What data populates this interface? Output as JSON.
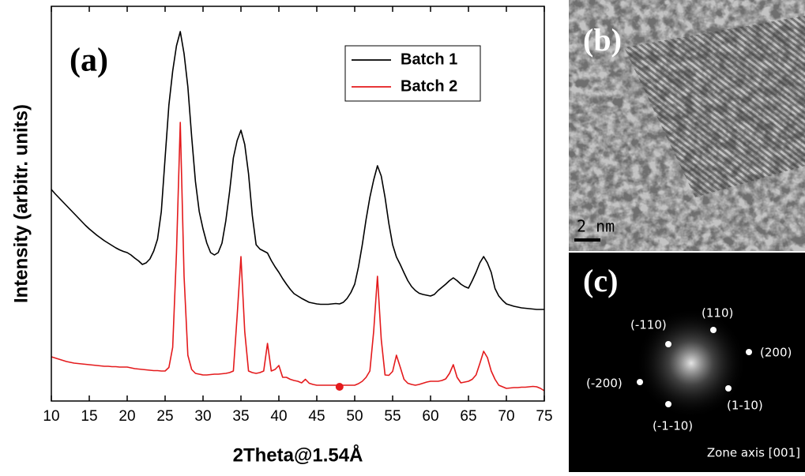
{
  "chart_data": {
    "type": "line",
    "label": "(a)",
    "xlabel": "2Theta@1.54Å",
    "ylabel": "Intensity (arbitr. units)",
    "x": [
      10,
      10.5,
      11,
      11.5,
      12,
      12.5,
      13,
      13.5,
      14,
      14.5,
      15,
      15.5,
      16,
      16.5,
      17,
      17.5,
      18,
      18.5,
      19,
      19.5,
      20,
      20.5,
      21,
      21.5,
      22,
      22.5,
      23,
      23.5,
      24,
      24.5,
      25,
      25.5,
      26,
      26.5,
      27,
      27.5,
      28,
      28.5,
      29,
      29.5,
      30,
      30.5,
      31,
      31.5,
      32,
      32.5,
      33,
      33.5,
      34,
      34.5,
      35,
      35.5,
      36,
      36.5,
      37,
      37.5,
      38,
      38.5,
      39,
      39.5,
      40,
      40.5,
      41,
      41.5,
      42,
      42.5,
      43,
      43.5,
      44,
      44.5,
      45,
      45.5,
      46,
      46.5,
      47,
      47.5,
      48,
      48.5,
      49,
      49.5,
      50,
      50.5,
      51,
      51.5,
      52,
      52.5,
      53,
      53.5,
      54,
      54.5,
      55,
      55.5,
      56,
      56.5,
      57,
      57.5,
      58,
      58.5,
      59,
      59.5,
      60,
      60.5,
      61,
      61.5,
      62,
      62.5,
      63,
      63.5,
      64,
      64.5,
      65,
      65.5,
      66,
      66.5,
      67,
      67.5,
      68,
      68.5,
      69,
      69.5,
      70,
      70.5,
      71,
      71.5,
      72,
      72.5,
      73,
      73.5,
      74,
      74.5,
      75
    ],
    "series": [
      {
        "name": "Batch 1",
        "color": "#000000",
        "values": [
          53.6,
          52.5,
          51.5,
          50.5,
          49.5,
          48.5,
          47.5,
          46.5,
          45.5,
          44.5,
          43.6,
          42.8,
          42,
          41.3,
          40.6,
          40,
          39.4,
          38.8,
          38.3,
          37.9,
          37.6,
          37,
          36.2,
          35.5,
          34.6,
          35,
          36,
          38,
          41,
          48,
          61.6,
          75,
          83.6,
          90,
          93.6,
          88,
          79.6,
          67,
          55.6,
          48,
          43.6,
          40,
          37.6,
          37,
          37.6,
          40,
          45.6,
          53,
          61.6,
          66,
          68.6,
          65,
          57.6,
          47,
          39.6,
          38.5,
          38,
          37.5,
          35.6,
          34,
          32.6,
          31,
          29.6,
          28.3,
          27.2,
          26.6,
          26,
          25.5,
          25,
          24.8,
          24.6,
          24.5,
          24.5,
          24.5,
          24.6,
          24.7,
          24.6,
          25,
          26,
          27.5,
          29.6,
          34,
          39.6,
          46,
          51.6,
          56,
          59.6,
          57,
          51.6,
          45,
          39.6,
          36.5,
          34.6,
          32.5,
          30.5,
          29,
          28,
          27.3,
          27,
          26.8,
          26.6,
          27,
          28,
          28.8,
          29.6,
          30.5,
          31.2,
          30.5,
          29.6,
          29,
          28.6,
          30.5,
          32.6,
          35,
          36.6,
          35,
          32.6,
          28.5,
          26.6,
          25.5,
          24.6,
          24.3,
          24,
          23.8,
          23.6,
          23.5,
          23.4,
          23.3,
          23.2,
          23.2,
          23.2
        ]
      },
      {
        "name": "Batch 2",
        "color": "#e41a1c",
        "values": [
          11.2,
          10.9,
          10.6,
          10.3,
          10,
          9.8,
          9.6,
          9.5,
          9.4,
          9.3,
          9.2,
          9.1,
          9,
          8.9,
          8.8,
          8.8,
          8.7,
          8.7,
          8.6,
          8.6,
          8.6,
          8.4,
          8.2,
          8.1,
          8,
          7.9,
          7.8,
          7.7,
          7.7,
          7.6,
          7.6,
          8.5,
          13.6,
          37.6,
          70.6,
          31.6,
          11.6,
          8,
          7,
          6.8,
          6.6,
          6.6,
          6.7,
          6.8,
          6.8,
          6.9,
          7,
          7.2,
          7.6,
          21.6,
          36.6,
          17.6,
          7.6,
          7.2,
          7,
          7.2,
          7.6,
          14.6,
          7.6,
          8,
          9,
          6,
          6,
          5.5,
          5.2,
          5,
          4.6,
          5.5,
          4.5,
          4.2,
          4,
          4,
          4,
          4,
          4,
          4,
          4,
          4,
          4,
          4,
          4,
          4.4,
          5,
          6,
          7.6,
          17.6,
          31.6,
          15.6,
          6.6,
          6.5,
          7.5,
          11.6,
          8.6,
          5.5,
          4.5,
          4.2,
          4,
          4.2,
          4.5,
          4.8,
          5,
          5,
          5,
          5.2,
          5.6,
          7,
          9.2,
          6,
          4.6,
          4.8,
          5,
          5.5,
          6.6,
          9.5,
          12.6,
          11,
          7.6,
          5.5,
          4,
          3.6,
          3.2,
          3.3,
          3.4,
          3.4,
          3.5,
          3.5,
          3.6,
          3.7,
          3.6,
          3.2,
          2.6
        ]
      }
    ],
    "markers": [
      {
        "x": 48,
        "y": 3.6,
        "color": "#e41a1c"
      }
    ],
    "xlim": [
      10,
      75
    ],
    "xticks": [
      10,
      15,
      20,
      25,
      30,
      35,
      40,
      45,
      50,
      55,
      60,
      65,
      70,
      75
    ],
    "ylim": [
      0,
      100
    ],
    "legend": "upper right"
  },
  "panels": [
    {
      "label": "(b)",
      "scale_bar": "2 nm"
    },
    {
      "label": "(c)",
      "spots": [
        "(110)",
        "(-110)",
        "(200)",
        "(-200)",
        "(1-10)",
        "(-1-10)"
      ],
      "caption": "Zone axis [001]"
    }
  ]
}
